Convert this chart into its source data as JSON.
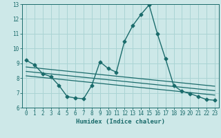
{
  "title": "",
  "xlabel": "Humidex (Indice chaleur)",
  "xlim": [
    -0.5,
    23.5
  ],
  "ylim": [
    6,
    13
  ],
  "yticks": [
    6,
    7,
    8,
    9,
    10,
    11,
    12,
    13
  ],
  "xticks": [
    0,
    1,
    2,
    3,
    4,
    5,
    6,
    7,
    8,
    9,
    10,
    11,
    12,
    13,
    14,
    15,
    16,
    17,
    18,
    19,
    20,
    21,
    22,
    23
  ],
  "background_color": "#cde8e8",
  "grid_color": "#aad4d4",
  "line_color": "#1a6b6b",
  "series": [
    {
      "x": [
        0,
        1,
        2,
        3,
        4,
        5,
        6,
        7,
        8,
        9,
        10,
        11,
        12,
        13,
        14,
        15,
        16,
        17,
        18,
        19,
        20,
        21,
        22,
        23
      ],
      "y": [
        9.2,
        8.9,
        8.3,
        8.1,
        7.5,
        6.75,
        6.65,
        6.6,
        7.5,
        9.1,
        8.65,
        8.4,
        10.5,
        11.55,
        12.3,
        12.95,
        11.0,
        9.3,
        7.5,
        7.1,
        6.95,
        6.75,
        6.55,
        6.5
      ],
      "marker": "D",
      "markersize": 2.5,
      "linewidth": 1.0
    },
    {
      "x": [
        0,
        23
      ],
      "y": [
        8.75,
        7.45
      ],
      "marker": null,
      "linewidth": 0.9
    },
    {
      "x": [
        0,
        23
      ],
      "y": [
        8.45,
        7.15
      ],
      "marker": null,
      "linewidth": 0.9
    },
    {
      "x": [
        0,
        23
      ],
      "y": [
        8.15,
        6.85
      ],
      "marker": null,
      "linewidth": 0.9
    }
  ]
}
